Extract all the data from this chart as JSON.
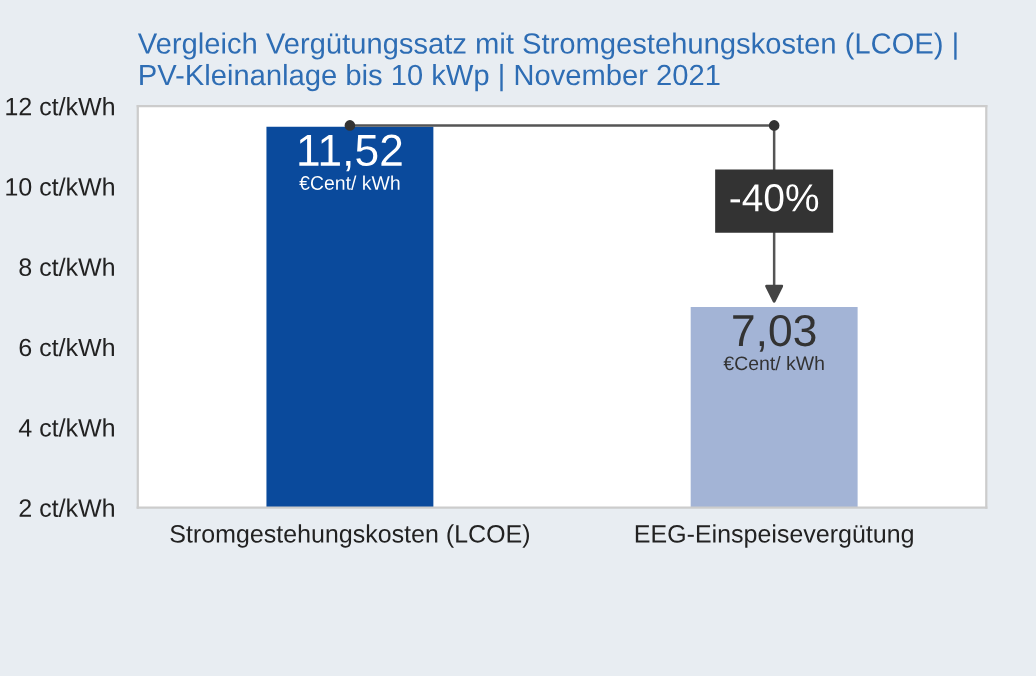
{
  "chart_data": {
    "type": "bar",
    "title": "Vergleich Vergütungssatz mit Stromgestehungskosten (LCOE) |\nPV-Kleinanlage bis 10 kWp | November 2021",
    "categories": [
      "Stromgestehungskosten (LCOE)",
      "EEG-Einspeisevergütung"
    ],
    "values": [
      11.52,
      7.03
    ],
    "colors": [
      "#0a4a9c",
      "#a3b4d6"
    ],
    "value_labels": [
      "11,52",
      "7,03"
    ],
    "ylim": [
      2,
      12
    ],
    "yticks": [
      {
        "value": 2,
        "label": "2 ct/kWh"
      },
      {
        "value": 4,
        "label": "4 ct/kWh"
      },
      {
        "value": 6,
        "label": "6 ct/kWh"
      },
      {
        "value": 8,
        "label": "8 ct/kWh"
      },
      {
        "value": 10,
        "label": "10 ct/kWh"
      },
      {
        "value": 12,
        "label": "12 ct/kWh"
      }
    ],
    "grid": false,
    "legend": false,
    "annotations": [
      {
        "text": "€Cent/ kWh",
        "x": "Stromgestehungskosten (LCOE)",
        "y": 11.52
      },
      {
        "text": "€Cent/ kWh",
        "x": "EEG-Einspeisevergütung",
        "y": 7.03
      },
      "-40%"
    ]
  }
}
